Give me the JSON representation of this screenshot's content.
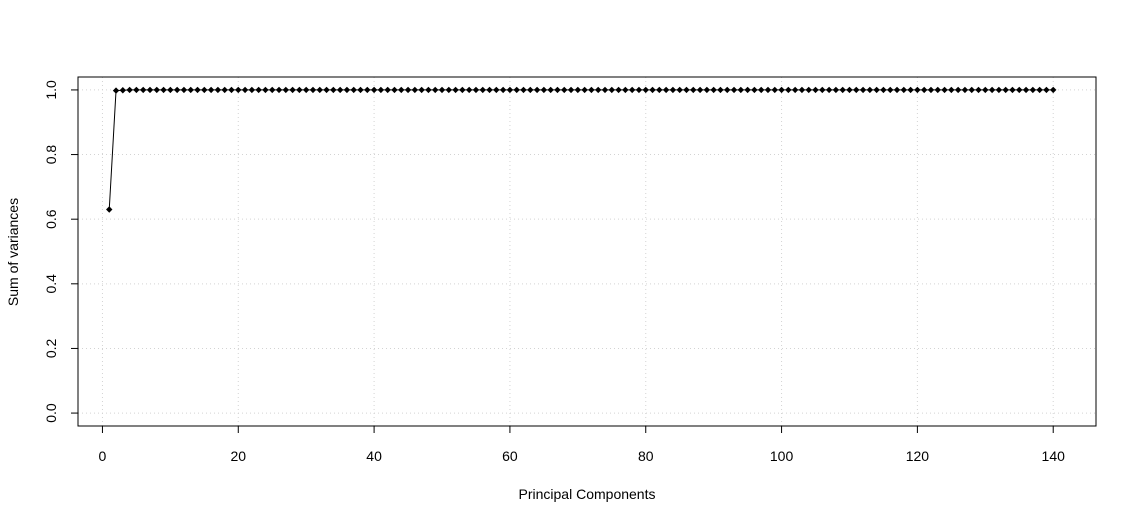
{
  "chart_data": {
    "type": "line",
    "title": "",
    "xlabel": "Principal Components",
    "ylabel": "Sum of variances",
    "xlim": [
      -3.6,
      146.3
    ],
    "ylim": [
      -0.04,
      1.04
    ],
    "x_ticks": [
      0,
      20,
      40,
      60,
      80,
      100,
      120,
      140
    ],
    "y_ticks": [
      0.0,
      0.2,
      0.4,
      0.6,
      0.8,
      1.0
    ],
    "x_tick_labels": [
      "0",
      "20",
      "40",
      "60",
      "80",
      "100",
      "120",
      "140"
    ],
    "y_tick_labels": [
      "0.0",
      "0.2",
      "0.4",
      "0.6",
      "0.8",
      "1.0"
    ],
    "grid": true,
    "marker": "diamond",
    "x_start": 1,
    "n_points": 140,
    "y_values": [
      0.63,
      0.998,
      0.999,
      1,
      1,
      1,
      1,
      1,
      1,
      1,
      1,
      1,
      1,
      1,
      1,
      1,
      1,
      1,
      1,
      1,
      1,
      1,
      1,
      1,
      1,
      1,
      1,
      1,
      1,
      1,
      1,
      1,
      1,
      1,
      1,
      1,
      1,
      1,
      1,
      1,
      1,
      1,
      1,
      1,
      1,
      1,
      1,
      1,
      1,
      1,
      1,
      1,
      1,
      1,
      1,
      1,
      1,
      1,
      1,
      1,
      1,
      1,
      1,
      1,
      1,
      1,
      1,
      1,
      1,
      1,
      1,
      1,
      1,
      1,
      1,
      1,
      1,
      1,
      1,
      1,
      1,
      1,
      1,
      1,
      1,
      1,
      1,
      1,
      1,
      1,
      1,
      1,
      1,
      1,
      1,
      1,
      1,
      1,
      1,
      1,
      1,
      1,
      1,
      1,
      1,
      1,
      1,
      1,
      1,
      1,
      1,
      1,
      1,
      1,
      1,
      1,
      1,
      1,
      1,
      1,
      1,
      1,
      1,
      1,
      1,
      1,
      1,
      1,
      1,
      1,
      1,
      1,
      1,
      1,
      1,
      1,
      1,
      1,
      1,
      1
    ]
  }
}
